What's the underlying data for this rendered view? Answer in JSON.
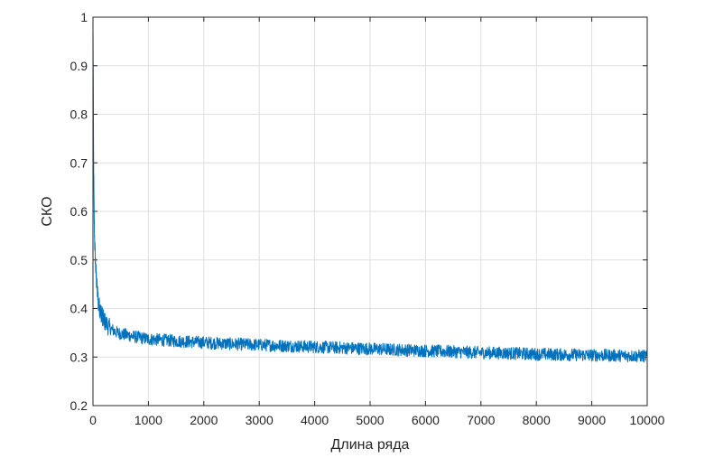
{
  "chart_data": {
    "type": "line",
    "title": "",
    "xlabel": "Длина ряда",
    "ylabel": "СКО",
    "xlim": [
      0,
      10000
    ],
    "ylim": [
      0.2,
      1.0
    ],
    "x_ticks": [
      0,
      1000,
      2000,
      3000,
      4000,
      5000,
      6000,
      7000,
      8000,
      9000,
      10000
    ],
    "x_tick_labels": [
      "0",
      "1000",
      "2000",
      "3000",
      "4000",
      "5000",
      "6000",
      "7000",
      "8000",
      "9000",
      "10000"
    ],
    "y_ticks": [
      0.2,
      0.3,
      0.4,
      0.5,
      0.6,
      0.7,
      0.8,
      0.9,
      1.0
    ],
    "y_tick_labels": [
      "0.2",
      "0.3",
      "0.4",
      "0.5",
      "0.6",
      "0.7",
      "0.8",
      "0.9",
      "1"
    ],
    "grid": true,
    "legend": "none",
    "line_color": "#0072BD",
    "series": [
      {
        "x": [
          1,
          5,
          10,
          20,
          30,
          50,
          75,
          100,
          150,
          200,
          300,
          400,
          500,
          750,
          1000,
          1500,
          2000,
          2500,
          3000,
          3500,
          4000,
          4500,
          5000,
          5500,
          6000,
          6500,
          7000,
          7500,
          8000,
          8500,
          9000,
          9500,
          10000
        ],
        "y": [
          0.96,
          0.88,
          0.72,
          0.6,
          0.54,
          0.48,
          0.44,
          0.41,
          0.39,
          0.375,
          0.36,
          0.352,
          0.348,
          0.342,
          0.337,
          0.333,
          0.33,
          0.327,
          0.325,
          0.323,
          0.321,
          0.319,
          0.317,
          0.315,
          0.313,
          0.311,
          0.309,
          0.308,
          0.306,
          0.305,
          0.304,
          0.303,
          0.302
        ],
        "noise_amplitude": 0.013
      }
    ]
  }
}
